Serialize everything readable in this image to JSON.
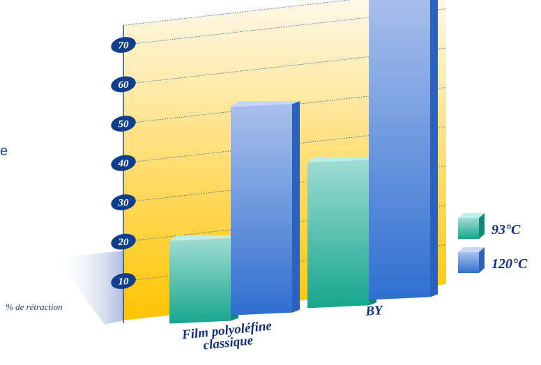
{
  "page": {
    "edge_text": "e"
  },
  "chart_data": {
    "type": "bar",
    "title": "",
    "xlabel": "",
    "ylabel": "% de rétraction",
    "ylim": [
      0,
      75
    ],
    "yticks": [
      10,
      20,
      30,
      40,
      50,
      60,
      70
    ],
    "grid": true,
    "style": "3d",
    "legend_position": "right",
    "categories": [
      "Film polyoléfine\nclassique",
      "BY"
    ],
    "series": [
      {
        "name": "93°C",
        "values": [
          21,
          37
        ],
        "color": "#3cbfa6"
      },
      {
        "name": "120°C",
        "values": [
          53,
          77
        ],
        "color": "#5f8fd6"
      }
    ],
    "colors": {
      "wall_top": "#fffaf0",
      "wall_bottom": "#ffc400",
      "tick_badge": "#0f3f8c",
      "label_text": "#0f2f80",
      "grid_line": "#2a5fb0"
    }
  }
}
